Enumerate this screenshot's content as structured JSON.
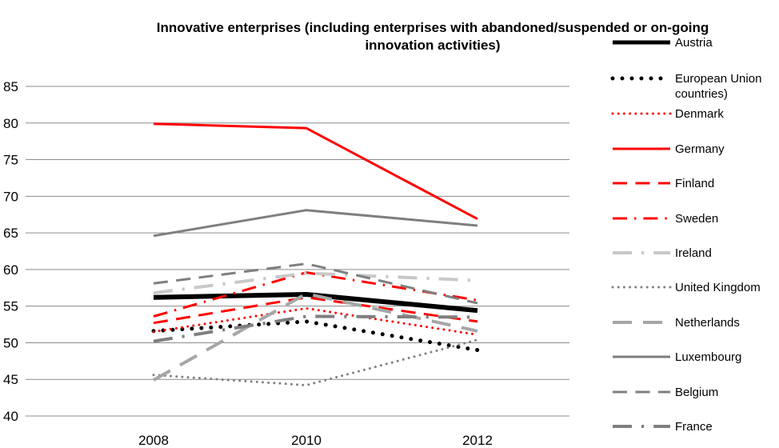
{
  "chart_data": {
    "type": "line",
    "title": "Innovative enterprises (including enterprises with abandoned/suspended or on-going innovation activities)",
    "title_lines": [
      "Innovative enterprises (including enterprises with abandoned/suspended or on-going",
      "innovation activities)"
    ],
    "categories": [
      "2008",
      "2010",
      "2012"
    ],
    "ylim": [
      40,
      85
    ],
    "yticks": [
      40,
      45,
      50,
      55,
      60,
      65,
      70,
      75,
      80,
      85
    ],
    "grid": true,
    "legend_position": "right",
    "series": [
      {
        "name": "Austria",
        "values": [
          56.2,
          56.6,
          54.4
        ],
        "color": "#000000",
        "style": "solid",
        "width": 6
      },
      {
        "name": "European Union countries)",
        "label_lines": [
          "European Union",
          "countries)"
        ],
        "values": [
          51.6,
          52.9,
          49.0
        ],
        "color": "#000000",
        "style": "dot",
        "width": 5
      },
      {
        "name": "Denmark",
        "values": [
          51.5,
          54.7,
          51.1
        ],
        "color": "#ff0000",
        "style": "dot",
        "width": 3
      },
      {
        "name": "Germany",
        "values": [
          79.9,
          79.3,
          66.9
        ],
        "color": "#ff0000",
        "style": "solid",
        "width": 3
      },
      {
        "name": "Finland",
        "values": [
          52.7,
          56.2,
          52.9
        ],
        "color": "#ff0000",
        "style": "dash",
        "width": 3
      },
      {
        "name": "Sweden",
        "values": [
          53.6,
          59.6,
          55.8
        ],
        "color": "#ff0000",
        "style": "dashdot",
        "width": 3
      },
      {
        "name": "Ireland",
        "values": [
          56.8,
          59.5,
          58.5
        ],
        "color": "#c8c8c8",
        "style": "dashdot",
        "width": 4
      },
      {
        "name": "United Kingdom",
        "values": [
          45.6,
          44.2,
          50.4
        ],
        "color": "#7f7f7f",
        "style": "dot",
        "width": 3
      },
      {
        "name": "Netherlands",
        "values": [
          44.9,
          56.7,
          51.6
        ],
        "color": "#a6a6a6",
        "style": "dash",
        "width": 4
      },
      {
        "name": "Luxembourg",
        "values": [
          64.6,
          68.1,
          66.0
        ],
        "color": "#7f7f7f",
        "style": "solid",
        "width": 3
      },
      {
        "name": "Belgium",
        "values": [
          58.1,
          60.8,
          55.4
        ],
        "color": "#7f7f7f",
        "style": "dash",
        "width": 3
      },
      {
        "name": "France",
        "values": [
          50.2,
          53.6,
          53.5
        ],
        "color": "#7f7f7f",
        "style": "dashdot",
        "width": 4
      }
    ]
  }
}
